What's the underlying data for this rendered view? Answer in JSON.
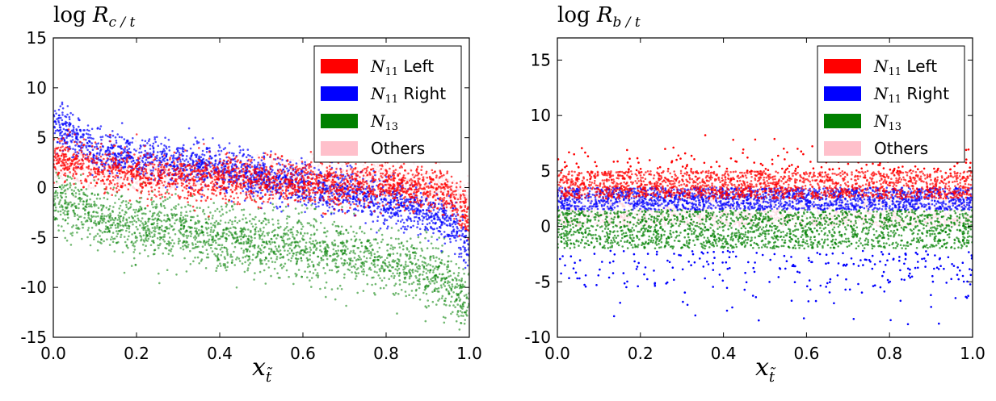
{
  "chart_data": [
    {
      "type": "scatter",
      "title_main": "log",
      "title_var": "R",
      "title_sub": "c / t",
      "xlabel_var": "x",
      "xlabel_sub": "t̃",
      "xlim": [
        0.0,
        1.0
      ],
      "ylim": [
        -15,
        15
      ],
      "xticks": [
        "0.0",
        "0.2",
        "0.4",
        "0.6",
        "0.8",
        "1.0"
      ],
      "yticks": [
        "15",
        "10",
        "5",
        "0",
        "-5",
        "-10",
        "-15"
      ],
      "legend_position": "top-right",
      "series": [
        {
          "name": "N11 Left",
          "label_var": "N",
          "label_sub": "11",
          "label_text": "Left",
          "color": "#ff0000",
          "trend": [
            [
              0.0,
              3.0
            ],
            [
              0.1,
              1.8
            ],
            [
              0.3,
              1.0
            ],
            [
              0.5,
              0.6
            ],
            [
              0.7,
              0.4
            ],
            [
              0.8,
              0.4
            ],
            [
              0.9,
              0.0
            ],
            [
              0.95,
              -0.5
            ],
            [
              1.0,
              -3.0
            ]
          ]
        },
        {
          "name": "N11 Right",
          "label_var": "N",
          "label_sub": "11",
          "label_text": "Right",
          "color": "#0000ff",
          "trend": [
            [
              0.0,
              6.5
            ],
            [
              0.1,
              3.8
            ],
            [
              0.3,
              2.5
            ],
            [
              0.5,
              1.0
            ],
            [
              0.7,
              -0.5
            ],
            [
              0.9,
              -2.5
            ],
            [
              0.95,
              -3.5
            ],
            [
              1.0,
              -6.0
            ]
          ]
        },
        {
          "name": "N13",
          "label_var": "N",
          "label_sub": "13",
          "label_text": "",
          "color": "#008000",
          "trend": [
            [
              0.0,
              -1.0
            ],
            [
              0.1,
              -3.0
            ],
            [
              0.3,
              -4.5
            ],
            [
              0.5,
              -5.5
            ],
            [
              0.7,
              -6.5
            ],
            [
              0.9,
              -8.5
            ],
            [
              0.95,
              -9.5
            ],
            [
              1.0,
              -12.0
            ]
          ]
        },
        {
          "name": "Others",
          "label_var": "",
          "label_sub": "",
          "label_text": "Others",
          "color": "#ffc0cb",
          "trend": [
            [
              0.0,
              2.0
            ],
            [
              0.2,
              1.5
            ],
            [
              0.5,
              1.0
            ],
            [
              0.8,
              0.5
            ],
            [
              1.0,
              -1.0
            ]
          ]
        }
      ]
    },
    {
      "type": "scatter",
      "title_main": "log",
      "title_var": "R",
      "title_sub": "b / t",
      "xlabel_var": "x",
      "xlabel_sub": "t̃",
      "xlim": [
        0.0,
        1.0
      ],
      "ylim": [
        -10,
        17
      ],
      "xticks": [
        "0.0",
        "0.2",
        "0.4",
        "0.6",
        "0.8",
        "1.0"
      ],
      "yticks": [
        "15",
        "10",
        "5",
        "0",
        "-5",
        "-10"
      ],
      "legend_position": "top-right",
      "series": [
        {
          "name": "N11 Left",
          "label_var": "N",
          "label_sub": "11",
          "label_text": "Left",
          "color": "#ff0000",
          "band": [
            2.5,
            5.0
          ],
          "outliers": "upper"
        },
        {
          "name": "N11 Right",
          "label_var": "N",
          "label_sub": "11",
          "label_text": "Right",
          "color": "#0000ff",
          "band": [
            1.5,
            3.5
          ],
          "outliers": "lower"
        },
        {
          "name": "N13",
          "label_var": "N",
          "label_sub": "13",
          "label_text": "",
          "color": "#008000",
          "band": [
            -2.0,
            1.5
          ],
          "outliers": "none"
        },
        {
          "name": "Others",
          "label_var": "",
          "label_sub": "",
          "label_text": "Others",
          "color": "#ffc0cb",
          "band": [
            0.0,
            2.5
          ],
          "outliers": "none"
        }
      ]
    }
  ]
}
